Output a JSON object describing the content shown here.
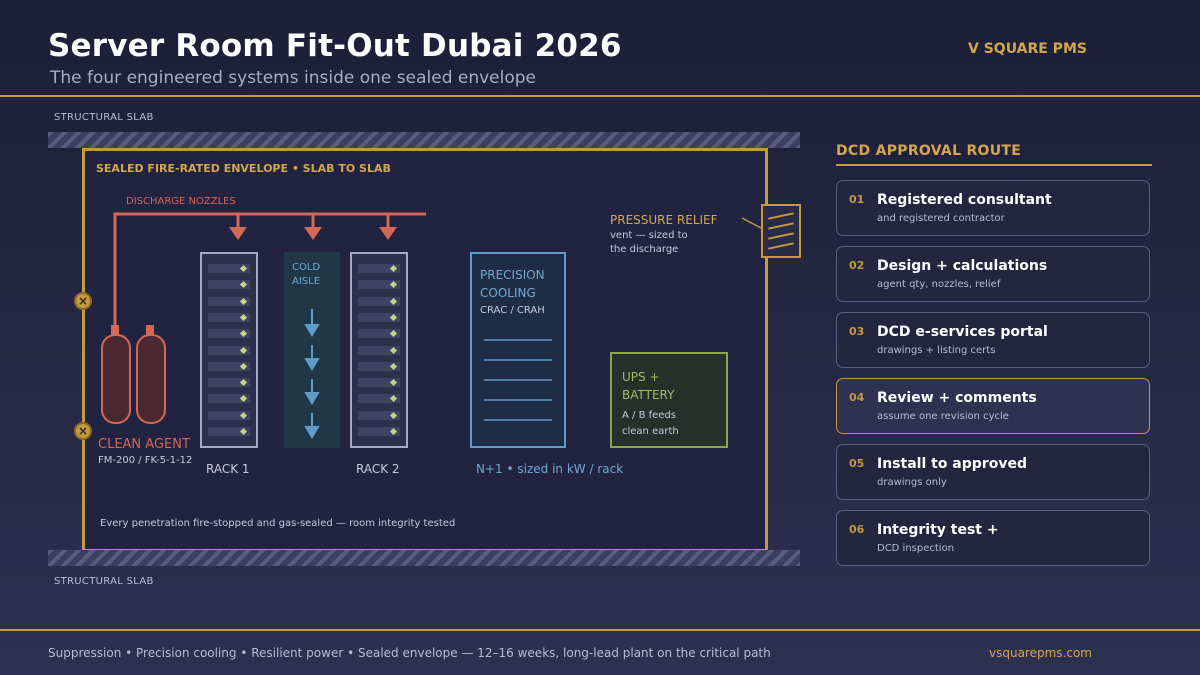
{
  "header": {
    "title": "Server Room Fit-Out Dubai 2026",
    "subtitle": "The four engineered systems inside one sealed envelope",
    "brand": "V SQUARE PMS"
  },
  "diagram": {
    "slab_top": "STRUCTURAL SLAB",
    "slab_bottom": "STRUCTURAL SLAB",
    "envelope_label": "SEALED FIRE-RATED ENVELOPE  •  SLAB TO SLAB",
    "discharge_label": "DISCHARGE NOZZLES",
    "clean_agent": {
      "title": "CLEAN AGENT",
      "sub": "FM-200 / FK-5-1-12"
    },
    "rack1": "RACK 1",
    "rack2": "RACK 2",
    "cold_aisle": {
      "line1": "COLD",
      "line2": "AISLE"
    },
    "cooling": {
      "line1": "PRECISION",
      "line2": "COOLING",
      "sub": "CRAC / CRAH",
      "note": "N+1  •  sized in kW / rack"
    },
    "ups": {
      "line1": "UPS +",
      "line2": "BATTERY",
      "sub1": "A / B feeds",
      "sub2": "clean earth"
    },
    "relief": {
      "title": "PRESSURE RELIEF",
      "sub1": "vent — sized to",
      "sub2": "the discharge"
    },
    "footnote": "Every penetration fire-stopped and gas-sealed  —  room integrity tested",
    "colors": {
      "gold": "#c59a3e",
      "red": "#d26856",
      "blue": "#5f9cc8",
      "green": "#8ea24a"
    }
  },
  "route": {
    "title": "DCD APPROVAL ROUTE",
    "steps": [
      {
        "num": "01",
        "title": "Registered consultant",
        "sub": "and registered contractor"
      },
      {
        "num": "02",
        "title": "Design + calculations",
        "sub": "agent qty, nozzles, relief"
      },
      {
        "num": "03",
        "title": "DCD e-services portal",
        "sub": "drawings + listing certs"
      },
      {
        "num": "04",
        "title": "Review + comments",
        "sub": "assume one revision cycle",
        "highlighted": true
      },
      {
        "num": "05",
        "title": "Install to approved",
        "sub": "drawings only"
      },
      {
        "num": "06",
        "title": "Integrity test +",
        "sub": "DCD inspection"
      }
    ]
  },
  "footer": {
    "summary": "Suppression  •  Precision cooling  •  Resilient power  •  Sealed envelope  —  12–16 weeks, long-lead plant on the critical path",
    "url": "vsquarepms.com"
  }
}
